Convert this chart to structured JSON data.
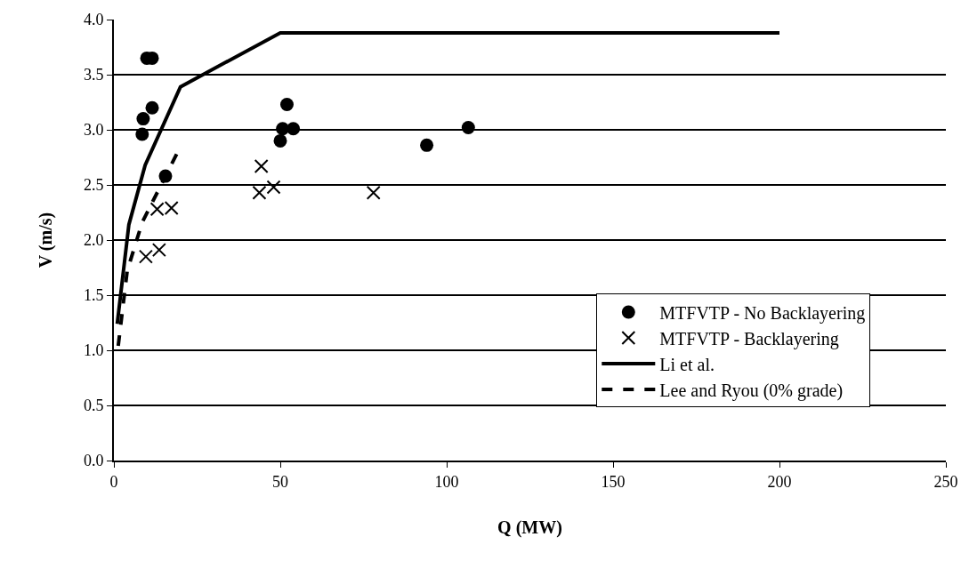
{
  "chart_data": {
    "type": "scatter",
    "xlabel": "Q (MW)",
    "ylabel": "V (m/s)",
    "xlim": [
      0,
      250
    ],
    "xticks": [
      0,
      50,
      100,
      150,
      200,
      250
    ],
    "ylim": [
      0,
      4
    ],
    "yticks": [
      {
        "value": 0,
        "label": "0.0"
      },
      {
        "value": 0.5,
        "label": "0.5"
      },
      {
        "value": 1,
        "label": "1.0"
      },
      {
        "value": 1.5,
        "label": "1.5"
      },
      {
        "value": 2,
        "label": "2.0"
      },
      {
        "value": 2.5,
        "label": "2.5"
      },
      {
        "value": 3,
        "label": "3.0"
      },
      {
        "value": 3.5,
        "label": "3.5"
      },
      {
        "value": 4,
        "label": "4.0"
      }
    ],
    "grid": "y",
    "legend": "right",
    "series": [
      {
        "name": "MTFVTP - No Backlayering",
        "type": "scatter",
        "marker": "circle",
        "color": "#000000",
        "x": [
          9.9,
          11.5,
          11.5,
          8.8,
          8.5,
          15.5,
          52,
          50.7,
          53.9,
          50,
          94,
          106.5
        ],
        "values": [
          3.65,
          3.65,
          3.2,
          3.1,
          2.96,
          2.58,
          3.23,
          3.01,
          3.01,
          2.9,
          2.86,
          3.02
        ]
      },
      {
        "name": "MTFVTP - Backlayering",
        "type": "scatter",
        "marker": "cross",
        "color": "#000000",
        "x": [
          9.6,
          13.6,
          13,
          17.3,
          44.3,
          43.7,
          48,
          78
        ],
        "values": [
          1.85,
          1.91,
          2.28,
          2.29,
          2.67,
          2.43,
          2.48,
          2.43
        ]
      },
      {
        "name": "Li et al.",
        "type": "line",
        "marker": "none",
        "line_style": "solid",
        "color": "#000000",
        "x": [
          1,
          4.5,
          9.4,
          20,
          50,
          200
        ],
        "values": [
          1.24,
          2.14,
          2.68,
          3.39,
          3.88,
          3.88
        ]
      },
      {
        "name": "Lee and Ryou (0% grade)",
        "type": "line",
        "marker": "none",
        "line_style": "dashed",
        "color": "#000000",
        "x": [
          1.3,
          4,
          8.5,
          19.2
        ],
        "values": [
          1.04,
          1.72,
          2.16,
          2.8
        ]
      }
    ]
  }
}
